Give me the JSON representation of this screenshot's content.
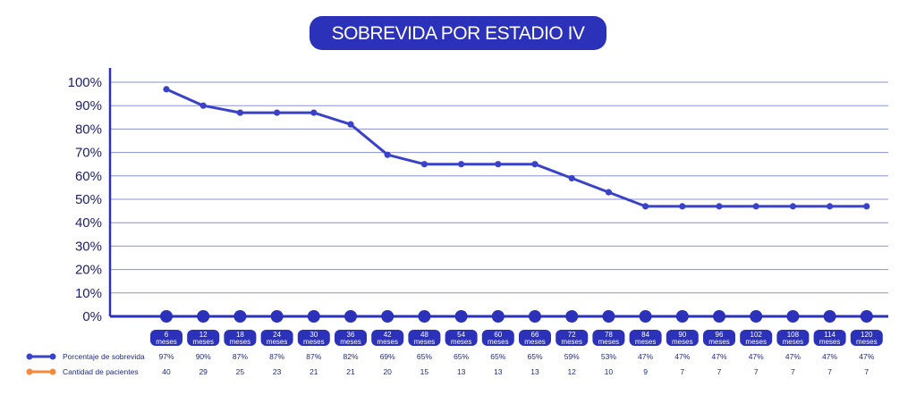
{
  "chart_data": {
    "type": "line",
    "title": "SOBREVIDA POR ESTADIO IV",
    "yticks": [
      "100%",
      "90%",
      "80%",
      "70%",
      "60%",
      "50%",
      "40%",
      "30%",
      "20%",
      "10%",
      "0%"
    ],
    "ylim": [
      0,
      100
    ],
    "grid": true,
    "categories": [
      [
        "6",
        "meses"
      ],
      [
        "12",
        "meses"
      ],
      [
        "18",
        "meses"
      ],
      [
        "24",
        "meses"
      ],
      [
        "30",
        "meses"
      ],
      [
        "36",
        "meses"
      ],
      [
        "42",
        "meses"
      ],
      [
        "48",
        "meses"
      ],
      [
        "54",
        "meses"
      ],
      [
        "60",
        "meses"
      ],
      [
        "66",
        "meses"
      ],
      [
        "72",
        "meses"
      ],
      [
        "78",
        "meses"
      ],
      [
        "84",
        "meses"
      ],
      [
        "90",
        "meses"
      ],
      [
        "96",
        "meses"
      ],
      [
        "102",
        "meses"
      ],
      [
        "108",
        "meses"
      ],
      [
        "114",
        "meses"
      ],
      [
        "120",
        "meses"
      ]
    ],
    "series": [
      {
        "name": "Porcentaje de sobrevida",
        "color": "#3a42c8",
        "values": [
          97,
          90,
          87,
          87,
          87,
          82,
          69,
          65,
          65,
          65,
          65,
          59,
          53,
          47,
          47,
          47,
          47,
          47,
          47,
          47
        ],
        "labels": [
          "97%",
          "90%",
          "87%",
          "87%",
          "87%",
          "82%",
          "69%",
          "65%",
          "65%",
          "65%",
          "65%",
          "59%",
          "53%",
          "47%",
          "47%",
          "47%",
          "47%",
          "47%",
          "47%",
          "47%"
        ]
      },
      {
        "name": "Cantidad de pacientes",
        "color": "#f58a3c",
        "values": [
          40,
          29,
          25,
          23,
          21,
          21,
          20,
          15,
          13,
          13,
          13,
          12,
          10,
          9,
          7,
          7,
          7,
          7,
          7,
          7
        ],
        "labels": [
          "40",
          "29",
          "25",
          "23",
          "21",
          "21",
          "20",
          "15",
          "13",
          "13",
          "13",
          "12",
          "10",
          "9",
          "7",
          "7",
          "7",
          "7",
          "7",
          "7"
        ]
      }
    ],
    "colors": {
      "axis": "#2b31b8",
      "grid": "#8a90d8",
      "pill": "#2b31b8"
    }
  }
}
